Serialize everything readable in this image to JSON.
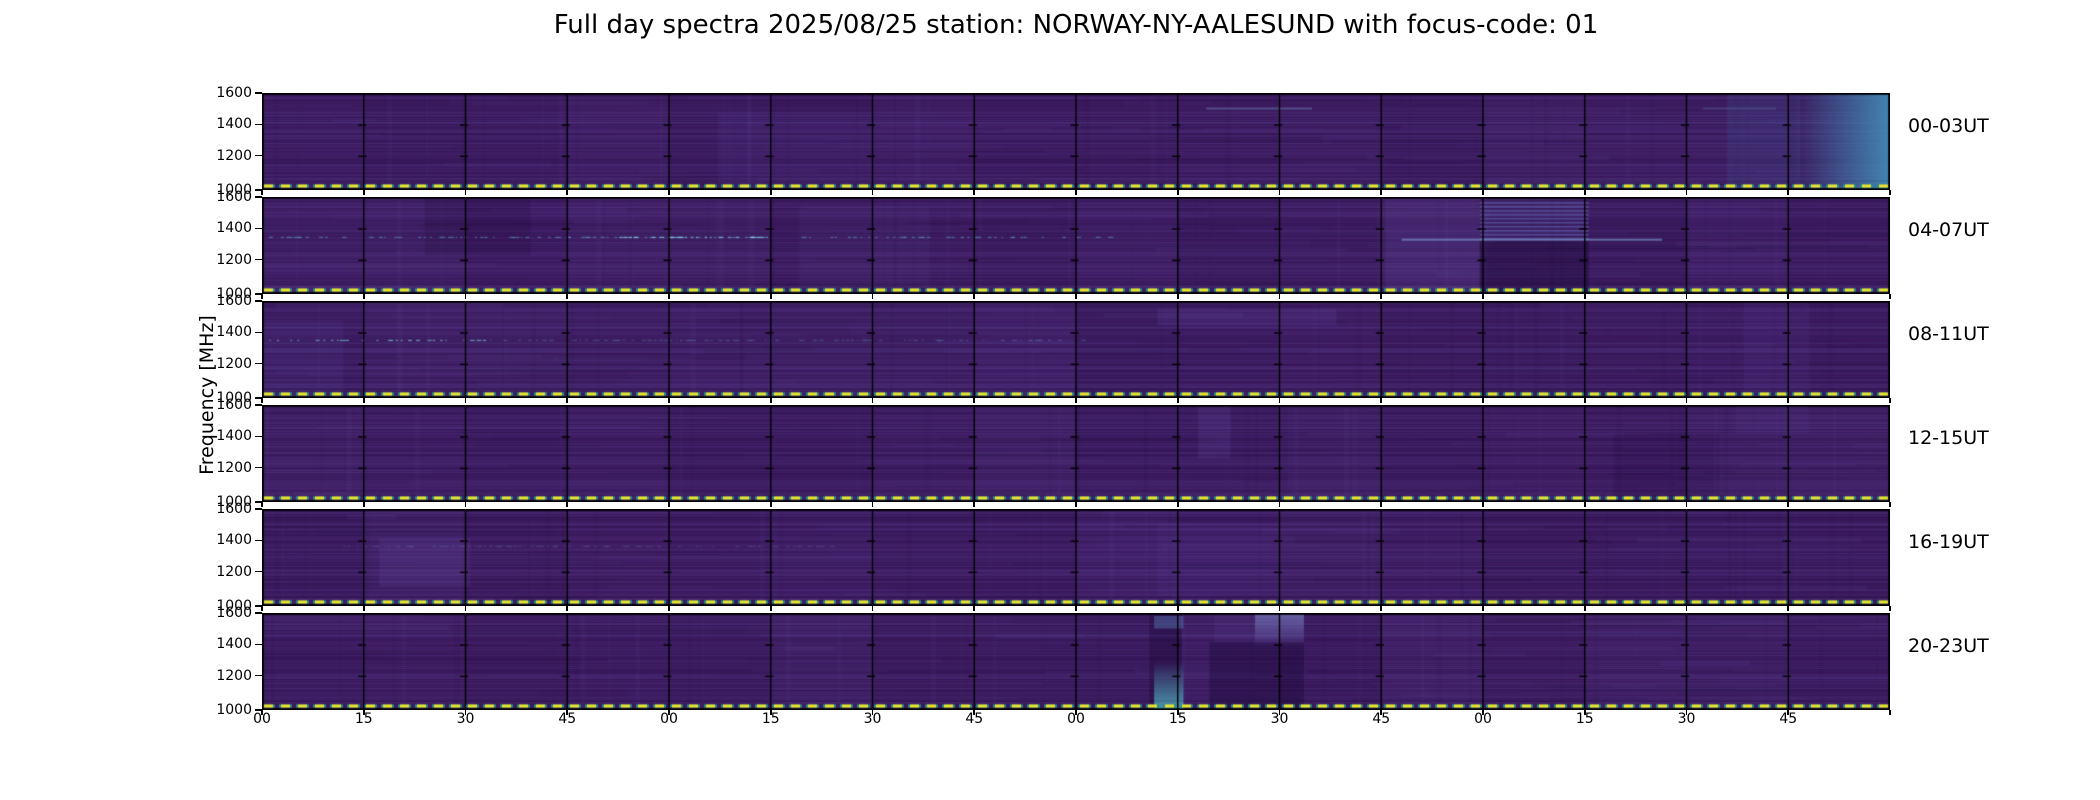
{
  "chart_data": {
    "type": "heatmap",
    "title": "Full day spectra 2025/08/25 station: NORWAY-NY-AALESUND with focus-code: 01",
    "ylabel": "Frequency [MHz]",
    "y_ticks": [
      "1600",
      "1400",
      "1200",
      "1000"
    ],
    "y_range_mhz": [
      1000,
      1600
    ],
    "x_ticks": [
      "00",
      "15",
      "30",
      "45",
      "00",
      "15",
      "30",
      "45",
      "00",
      "15",
      "30",
      "45",
      "00",
      "15",
      "30",
      "45"
    ],
    "x_unit": "minutes of hour (UT)",
    "segments_per_row": 16,
    "minutes_per_segment": 15,
    "colormap": "viridis",
    "base_color": "#3e1c62",
    "grid": "black divider each 15-min segment",
    "legend": "none",
    "marker_line": {
      "freq_mhz": 1010,
      "style": "dashed",
      "dash_color": "#efe32b",
      "edge_color": "#21948c"
    },
    "rows": [
      {
        "label": "00-03UT",
        "seed": 11,
        "features": [
          {
            "kind": "rect",
            "x": [
              0.28,
              0.375
            ],
            "y": [
              0.2,
              1
            ],
            "color": "rgba(115,95,185,0.08)"
          },
          {
            "kind": "hline",
            "x": [
              0.58,
              0.645
            ],
            "y": [
              0.15,
              0.17
            ],
            "color": "rgba(120,165,220,0.35)"
          },
          {
            "kind": "hline",
            "x": [
              0.885,
              0.93
            ],
            "y": [
              0.15,
              0.17
            ],
            "color": "rgba(120,165,220,0.22)"
          },
          {
            "kind": "rect",
            "x": [
              0.9,
              0.945
            ],
            "y": [
              0,
              1
            ],
            "color": "rgba(60,115,170,0.16)"
          },
          {
            "kind": "fade-right",
            "x": [
              0.94,
              1.0
            ],
            "y": [
              0,
              1
            ],
            "color": "rgba(66,142,185,0.92)"
          }
        ]
      },
      {
        "label": "04-07UT",
        "seed": 22,
        "features": [
          {
            "kind": "rect",
            "x": [
              0.1,
              0.165
            ],
            "y": [
              0,
              0.6
            ],
            "color": "rgba(22,4,48,0.16)"
          },
          {
            "kind": "rect",
            "x": [
              0.69,
              0.748
            ],
            "y": [
              0,
              1
            ],
            "color": "rgba(115,95,185,0.12)"
          },
          {
            "kind": "stripes",
            "x": [
              0.748,
              0.815
            ],
            "y": [
              0.05,
              0.44
            ],
            "color": "rgba(105,125,205,0.42)"
          },
          {
            "kind": "rect",
            "x": [
              0.748,
              0.815
            ],
            "y": [
              0.46,
              1
            ],
            "color": "rgba(18,0,42,0.32)"
          },
          {
            "kind": "hline",
            "x": [
              0.7,
              0.86
            ],
            "y": [
              0.43,
              0.45
            ],
            "color": "rgba(135,175,225,0.55)"
          },
          {
            "kind": "speckle",
            "x": [
              0.0,
              0.52
            ],
            "y": [
              0.41,
              0.43
            ],
            "color": "rgba(100,195,210,0.45)"
          },
          {
            "kind": "speckle",
            "x": [
              0.22,
              0.31
            ],
            "y": [
              0.41,
              0.43
            ],
            "color": "rgba(130,220,230,0.75)"
          },
          {
            "kind": "rect",
            "x": [
              0.33,
              0.41
            ],
            "y": [
              0.1,
              0.95
            ],
            "color": "rgba(115,95,185,0.07)"
          }
        ]
      },
      {
        "label": "08-11UT",
        "seed": 33,
        "features": [
          {
            "kind": "speckle",
            "x": [
              0.0,
              0.14
            ],
            "y": [
              0.4,
              0.42
            ],
            "color": "rgba(120,210,220,0.6)"
          },
          {
            "kind": "speckle",
            "x": [
              0.14,
              0.52
            ],
            "y": [
              0.4,
              0.42
            ],
            "color": "rgba(110,190,205,0.25)"
          },
          {
            "kind": "rect",
            "x": [
              0.55,
              0.66
            ],
            "y": [
              0.08,
              0.25
            ],
            "color": "rgba(120,100,190,0.13)"
          },
          {
            "kind": "rect",
            "x": [
              0.0,
              0.05
            ],
            "y": [
              0.2,
              1
            ],
            "color": "rgba(115,95,185,0.09)"
          },
          {
            "kind": "rect",
            "x": [
              0.91,
              0.95
            ],
            "y": [
              0,
              1
            ],
            "color": "rgba(115,95,185,0.08)"
          }
        ]
      },
      {
        "label": "12-15UT",
        "seed": 44,
        "features": [
          {
            "kind": "rect",
            "x": [
              0.575,
              0.595
            ],
            "y": [
              0,
              0.55
            ],
            "color": "rgba(120,100,190,0.14)"
          },
          {
            "kind": "rect",
            "x": [
              0.83,
              0.895
            ],
            "y": [
              0.3,
              1
            ],
            "color": "rgba(20,2,45,0.1)"
          },
          {
            "kind": "rect",
            "x": [
              0.905,
              0.95
            ],
            "y": [
              0,
              0.3
            ],
            "color": "rgba(115,95,185,0.07)"
          }
        ]
      },
      {
        "label": "16-19UT",
        "seed": 55,
        "features": [
          {
            "kind": "rect",
            "x": [
              0.072,
              0.128
            ],
            "y": [
              0.3,
              0.8
            ],
            "color": "rgba(120,100,190,0.13)"
          },
          {
            "kind": "rect",
            "x": [
              0.55,
              0.625
            ],
            "y": [
              0.15,
              0.9
            ],
            "color": "rgba(115,95,185,0.08)"
          },
          {
            "kind": "speckle",
            "x": [
              0.05,
              0.35
            ],
            "y": [
              0.38,
              0.4
            ],
            "color": "rgba(110,180,200,0.2)"
          }
        ]
      },
      {
        "label": "20-23UT",
        "seed": 66,
        "features": [
          {
            "kind": "rect",
            "x": [
              0.545,
              0.565
            ],
            "y": [
              0,
              1
            ],
            "color": "rgba(18,0,42,0.28)"
          },
          {
            "kind": "fade-down",
            "x": [
              0.548,
              0.566
            ],
            "y": [
              0.5,
              1
            ],
            "color": "rgba(80,175,190,0.85)"
          },
          {
            "kind": "rect",
            "x": [
              0.548,
              0.566
            ],
            "y": [
              0.03,
              0.16
            ],
            "color": "rgba(100,150,210,0.35)"
          },
          {
            "kind": "rect",
            "x": [
              0.582,
              0.64
            ],
            "y": [
              0.3,
              1
            ],
            "color": "rgba(18,0,42,0.3)"
          },
          {
            "kind": "fade-up",
            "x": [
              0.61,
              0.64
            ],
            "y": [
              0.0,
              0.35
            ],
            "color": "rgba(135,155,215,0.55)"
          },
          {
            "kind": "rect",
            "x": [
              0.585,
              0.64
            ],
            "y": [
              0,
              0.3
            ],
            "color": "rgba(115,95,185,0.1)"
          }
        ]
      }
    ]
  }
}
